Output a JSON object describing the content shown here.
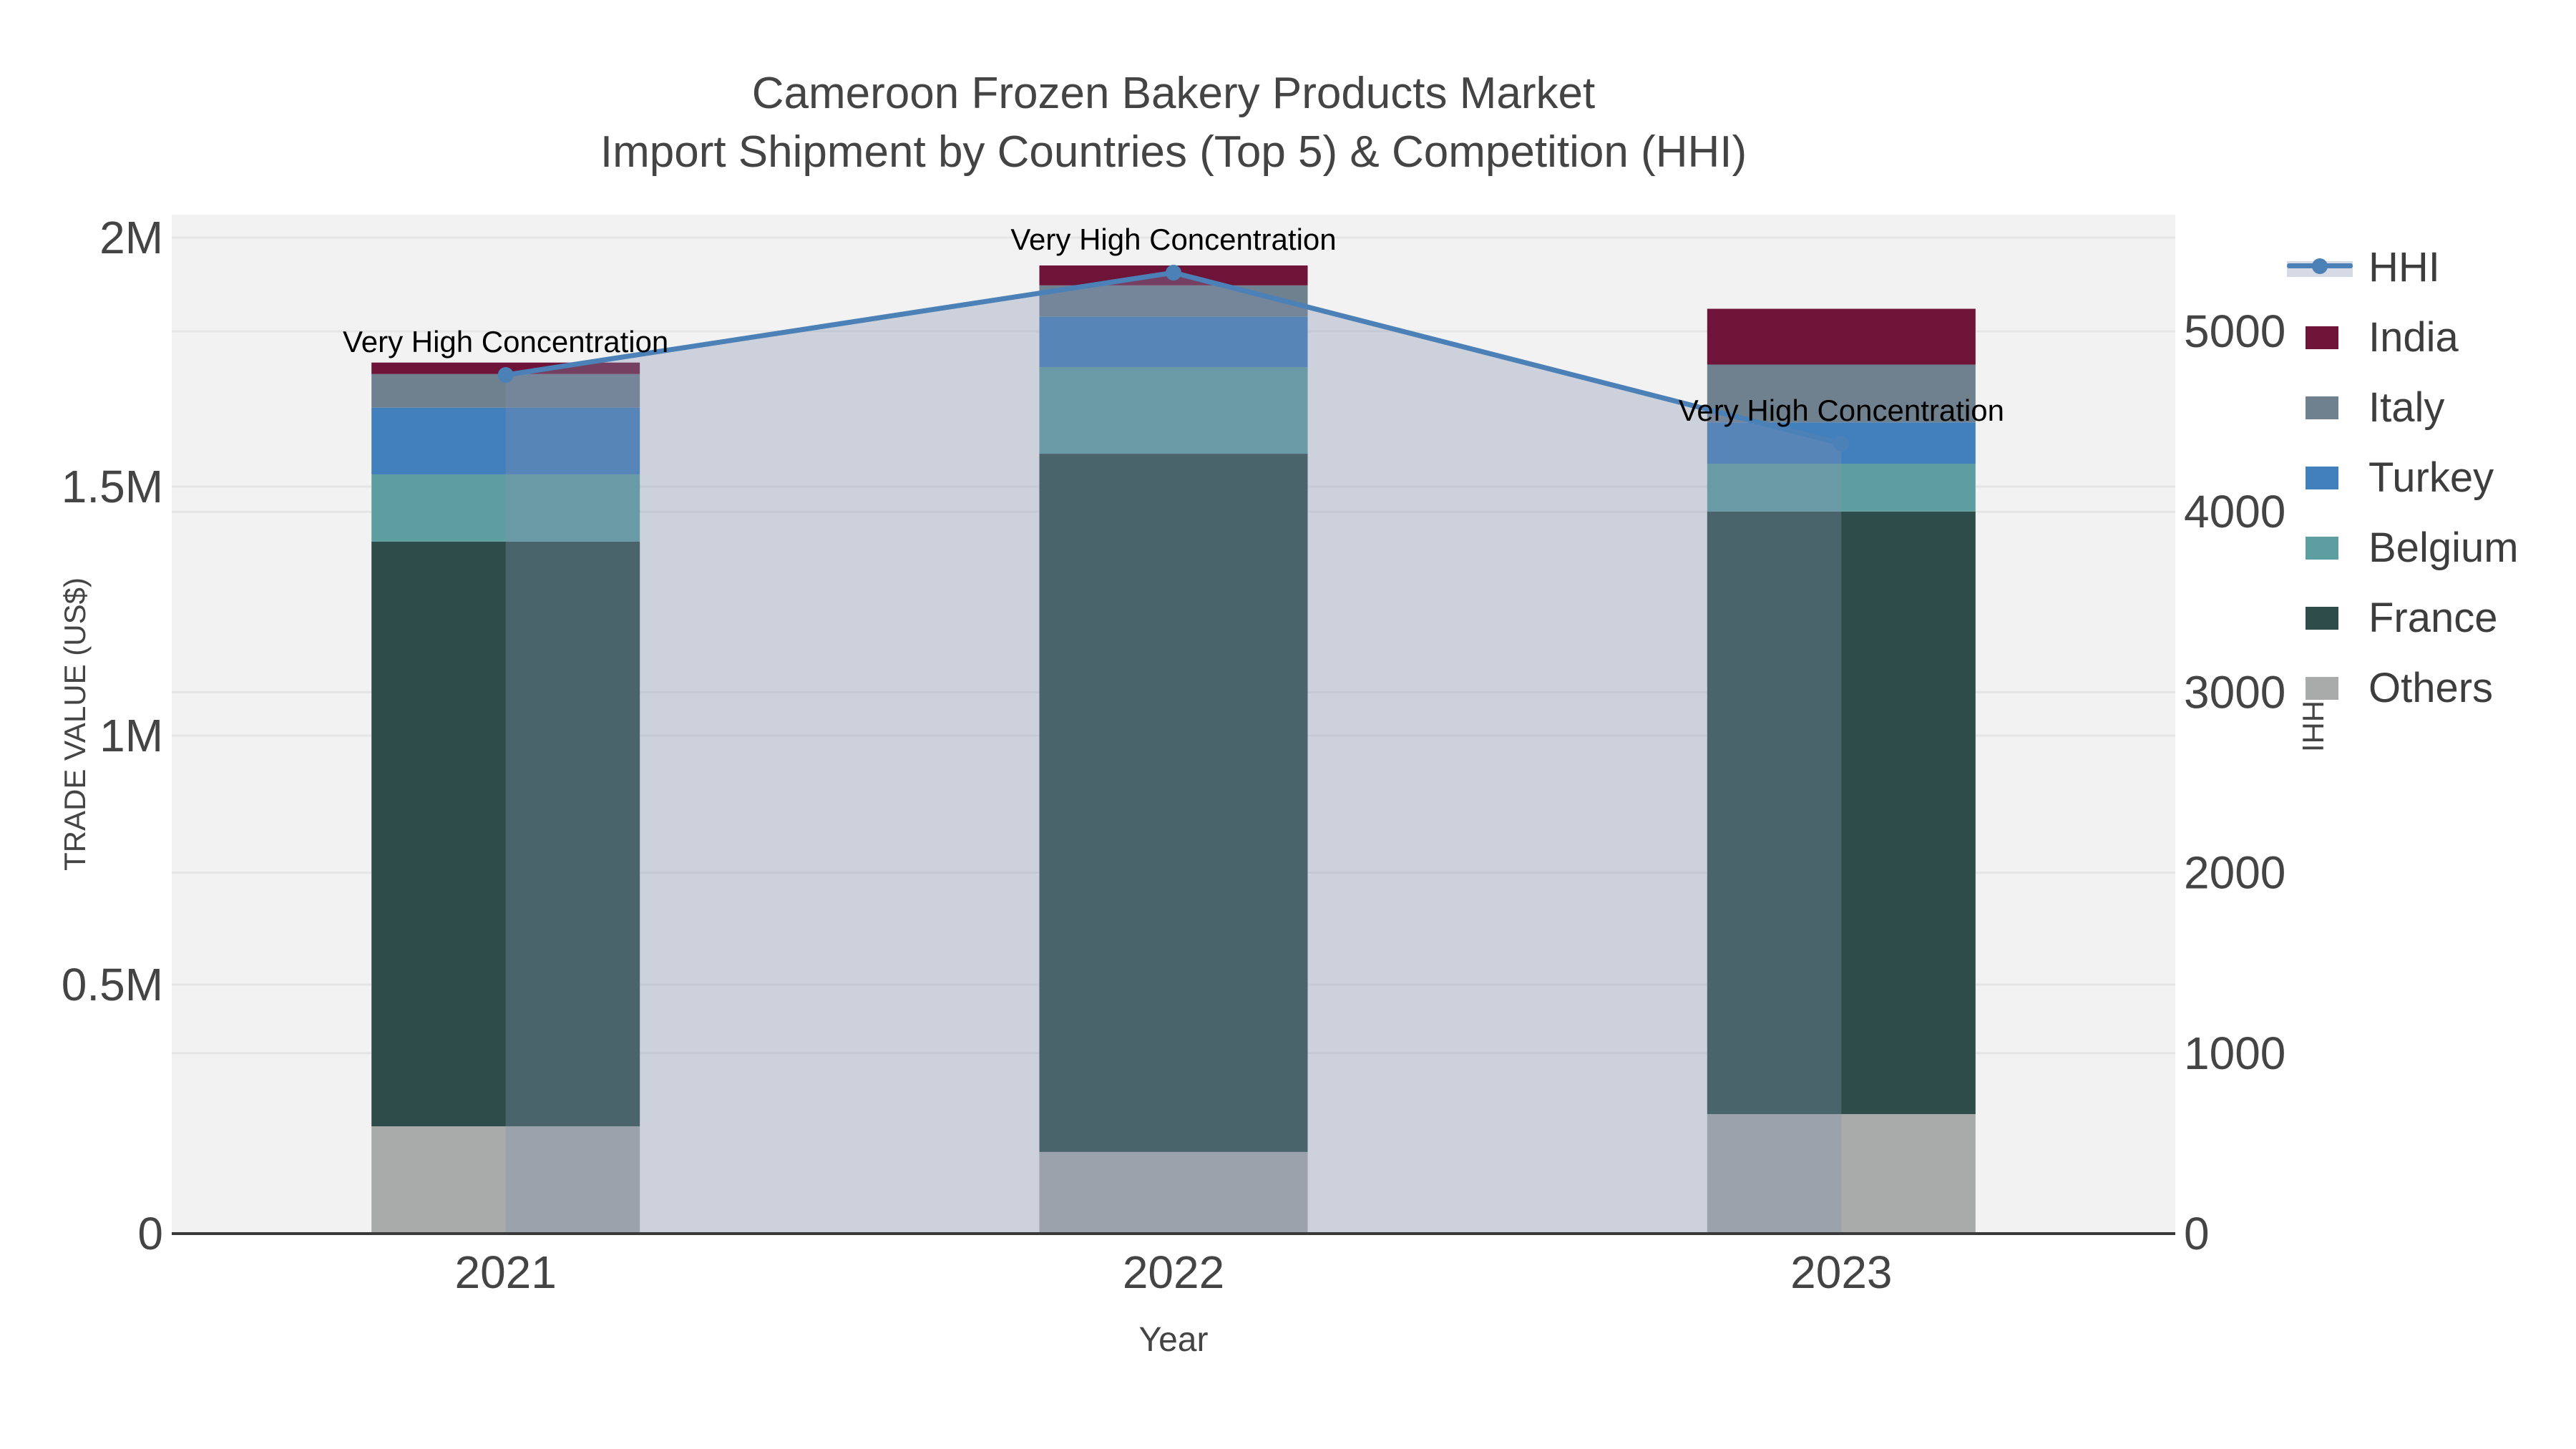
{
  "title": {
    "line1": "Cameroon Frozen Bakery Products Market",
    "line2": "Import Shipment by Countries (Top 5) & Competition (HHI)"
  },
  "axes": {
    "x": {
      "title": "Year",
      "categories": [
        "2021",
        "2022",
        "2023"
      ]
    },
    "y_left": {
      "title": "TRADE VALUE (US$)",
      "tick_labels": [
        "0",
        "0.5M",
        "1M",
        "1.5M",
        "2M"
      ],
      "tick_values": [
        0,
        500000,
        1000000,
        1500000,
        2000000
      ],
      "range": [
        0,
        2046000
      ]
    },
    "y_right": {
      "title": "HHI",
      "tick_labels": [
        "0",
        "1000",
        "2000",
        "3000",
        "4000",
        "5000"
      ],
      "tick_values": [
        0,
        1000,
        2000,
        3000,
        4000,
        5000
      ],
      "range": [
        0,
        5646
      ]
    }
  },
  "chart_data": {
    "type": "bar",
    "subtype": "stacked-bars-with-hhi-line-overlay",
    "categories": [
      "2021",
      "2022",
      "2023"
    ],
    "series": [
      {
        "name": "Others",
        "color": "#a9abaa",
        "values": [
          215500,
          164000,
          240000
        ]
      },
      {
        "name": "France",
        "color": "#2d4c4a",
        "values": [
          1174000,
          1402000,
          1210000
        ]
      },
      {
        "name": "Belgium",
        "color": "#5d9ea1",
        "values": [
          135000,
          174000,
          96000
        ]
      },
      {
        "name": "Turkey",
        "color": "#417fbd",
        "values": [
          134000,
          101000,
          83000
        ]
      },
      {
        "name": "Italy",
        "color": "#6f808f",
        "values": [
          67500,
          63000,
          116000
        ]
      },
      {
        "name": "India",
        "color": "#6d1438",
        "values": [
          23000,
          40000,
          112000
        ]
      }
    ],
    "totals": [
      1749000,
      1944000,
      1857000
    ],
    "line_series": {
      "name": "HHI",
      "axis": "right",
      "color": "#4c81b7",
      "fill_color": "rgba(133,148,175,0.34)",
      "values": [
        4758,
        5325,
        4378
      ]
    },
    "annotations": [
      {
        "text": "Very High Concentration",
        "category": "2021",
        "hhi": 4758
      },
      {
        "text": "Very High Concentration",
        "category": "2022",
        "hhi": 5325
      },
      {
        "text": "Very High Concentration",
        "category": "2023",
        "hhi": 4378
      }
    ],
    "legend_position": "right",
    "grid": true,
    "plot_bg": "#f2f2f2",
    "grid_color": "#e5e5e5",
    "axis_line_color": "#3a3a3a",
    "tick_color": "#444444",
    "annotation_color": "#000000"
  },
  "legend": {
    "items": [
      {
        "label": "HHI",
        "type": "line",
        "color": "#4c81b7"
      },
      {
        "label": "India",
        "type": "swatch",
        "color": "#6d1438"
      },
      {
        "label": "Italy",
        "type": "swatch",
        "color": "#6f808f"
      },
      {
        "label": "Turkey",
        "type": "swatch",
        "color": "#417fbd"
      },
      {
        "label": "Belgium",
        "type": "swatch",
        "color": "#5d9ea1"
      },
      {
        "label": "France",
        "type": "swatch",
        "color": "#2d4c4a"
      },
      {
        "label": "Others",
        "type": "swatch",
        "color": "#a9abaa"
      }
    ]
  }
}
